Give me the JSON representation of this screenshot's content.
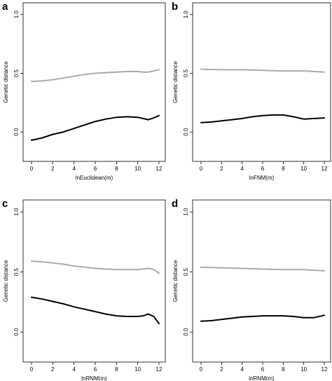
{
  "chart_data": [
    {
      "type": "line",
      "panel": "a",
      "xlabel": "lnEuclidean(m)",
      "ylabel": "Genetic distance",
      "xlim": [
        0,
        12
      ],
      "ylim": [
        -0.25,
        1.1
      ],
      "xticks": [
        0,
        2,
        4,
        6,
        8,
        10,
        12
      ],
      "yticks": [
        0.0,
        0.5,
        1.0
      ],
      "ytick_labels": [
        "0.0",
        "0.5",
        "1.0"
      ],
      "grid": false,
      "series": [
        {
          "color": "#aaaaaa",
          "x": [
            0,
            1,
            2,
            3,
            4,
            5,
            6,
            7,
            8,
            9,
            10,
            10.5,
            11,
            11.5,
            12
          ],
          "y": [
            0.43,
            0.435,
            0.445,
            0.46,
            0.475,
            0.49,
            0.5,
            0.505,
            0.51,
            0.515,
            0.515,
            0.51,
            0.51,
            0.52,
            0.53
          ]
        },
        {
          "color": "#000000",
          "x": [
            0,
            1,
            2,
            3,
            4,
            5,
            6,
            7,
            8,
            9,
            10,
            10.5,
            11,
            11.5,
            12
          ],
          "y": [
            -0.07,
            -0.05,
            -0.02,
            0.0,
            0.03,
            0.06,
            0.09,
            0.11,
            0.125,
            0.13,
            0.125,
            0.115,
            0.105,
            0.12,
            0.14
          ]
        }
      ]
    },
    {
      "type": "line",
      "panel": "b",
      "xlabel": "lnFNM(m)",
      "ylabel": "Genetic distance",
      "xlim": [
        0,
        12
      ],
      "ylim": [
        -0.25,
        1.1
      ],
      "xticks": [
        0,
        2,
        4,
        6,
        8,
        10,
        12
      ],
      "yticks": [
        0.0,
        0.5,
        1.0
      ],
      "ytick_labels": [
        "0.0",
        "0.5",
        "1.0"
      ],
      "grid": false,
      "series": [
        {
          "color": "#aaaaaa",
          "x": [
            0,
            2,
            4,
            6,
            8,
            10,
            11,
            12
          ],
          "y": [
            0.535,
            0.53,
            0.53,
            0.525,
            0.52,
            0.52,
            0.515,
            0.51
          ]
        },
        {
          "color": "#000000",
          "x": [
            0,
            1,
            2,
            3,
            4,
            5,
            6,
            7,
            8,
            9,
            10,
            11,
            12
          ],
          "y": [
            0.08,
            0.085,
            0.095,
            0.105,
            0.115,
            0.13,
            0.14,
            0.145,
            0.145,
            0.13,
            0.11,
            0.115,
            0.12
          ]
        }
      ]
    },
    {
      "type": "line",
      "panel": "c",
      "xlabel": "lnRNM(m)",
      "ylabel": "Genetic distance",
      "xlim": [
        0,
        12
      ],
      "ylim": [
        -0.25,
        1.1
      ],
      "xticks": [
        0,
        2,
        4,
        6,
        8,
        10,
        12
      ],
      "yticks": [
        0.0,
        0.5,
        1.0
      ],
      "ytick_labels": [
        "0.0",
        "0.5",
        "1.0"
      ],
      "grid": false,
      "series": [
        {
          "color": "#aaaaaa",
          "x": [
            0,
            1,
            2,
            3,
            4,
            5,
            6,
            7,
            8,
            9,
            10,
            10.5,
            11,
            11.5,
            12
          ],
          "y": [
            0.59,
            0.585,
            0.575,
            0.565,
            0.55,
            0.54,
            0.53,
            0.525,
            0.52,
            0.52,
            0.52,
            0.525,
            0.53,
            0.52,
            0.49
          ]
        },
        {
          "color": "#000000",
          "x": [
            0,
            1,
            2,
            3,
            4,
            5,
            6,
            7,
            8,
            9,
            10,
            10.5,
            11,
            11.5,
            12
          ],
          "y": [
            0.29,
            0.275,
            0.255,
            0.235,
            0.21,
            0.19,
            0.17,
            0.15,
            0.135,
            0.13,
            0.13,
            0.135,
            0.15,
            0.13,
            0.07
          ]
        }
      ]
    },
    {
      "type": "line",
      "panel": "d",
      "xlabel": "lnRNM(m)",
      "ylabel": "Genetic distance",
      "xlim": [
        0,
        12
      ],
      "ylim": [
        -0.25,
        1.1
      ],
      "xticks": [
        0,
        2,
        4,
        6,
        8,
        10,
        12
      ],
      "yticks": [
        0.0,
        0.5,
        1.0
      ],
      "ytick_labels": [
        "0.0",
        "0.5",
        "1.0"
      ],
      "grid": false,
      "series": [
        {
          "color": "#aaaaaa",
          "x": [
            0,
            2,
            4,
            6,
            8,
            10,
            11,
            12
          ],
          "y": [
            0.54,
            0.535,
            0.53,
            0.525,
            0.52,
            0.52,
            0.515,
            0.51
          ]
        },
        {
          "color": "#000000",
          "x": [
            0,
            1,
            2,
            3,
            4,
            5,
            6,
            7,
            8,
            9,
            10,
            11,
            12
          ],
          "y": [
            0.09,
            0.095,
            0.105,
            0.115,
            0.125,
            0.13,
            0.135,
            0.135,
            0.135,
            0.13,
            0.12,
            0.12,
            0.14
          ]
        }
      ]
    }
  ]
}
